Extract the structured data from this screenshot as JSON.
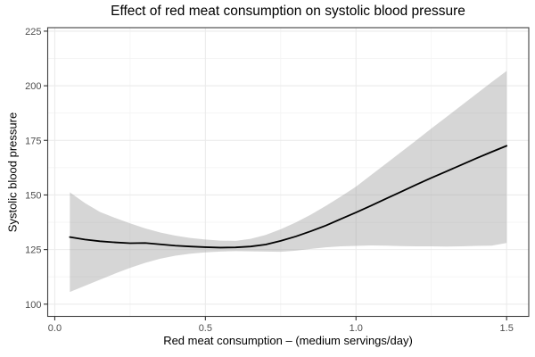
{
  "chart_data": {
    "type": "line",
    "title": "Effect of red meat consumption on systolic blood pressure",
    "xlabel": "Red meat consumption – (medium servings/day)",
    "ylabel": "Systolic blood pressure",
    "legend": "none",
    "grid": "on",
    "xlim": [
      -0.0235,
      1.5735
    ],
    "ylim": [
      94.4,
      226.6
    ],
    "x_ticks": {
      "major": [
        0.0,
        0.5,
        1.0,
        1.5
      ],
      "minor": [
        0.25,
        0.75,
        1.25
      ],
      "labels": [
        "0.0",
        "0.5",
        "1.0",
        "1.5"
      ]
    },
    "y_ticks": {
      "major": [
        100,
        125,
        150,
        175,
        200,
        225
      ],
      "minor": [
        112.5,
        137.5,
        162.5,
        187.5,
        212.5
      ],
      "labels": [
        "100",
        "125",
        "150",
        "175",
        "200",
        "225"
      ]
    },
    "x": [
      0.05,
      0.1,
      0.15,
      0.2,
      0.25,
      0.3,
      0.35,
      0.4,
      0.45,
      0.5,
      0.55,
      0.6,
      0.65,
      0.7,
      0.75,
      0.8,
      0.85,
      0.9,
      0.95,
      1.0,
      1.05,
      1.1,
      1.15,
      1.2,
      1.25,
      1.3,
      1.35,
      1.4,
      1.45,
      1.5
    ],
    "series": [
      {
        "name": "mean_systolic_bp",
        "role": "line",
        "values": [
          130.7,
          129.6,
          128.8,
          128.3,
          127.9,
          128.0,
          127.4,
          126.8,
          126.4,
          126.1,
          125.9,
          126.0,
          126.4,
          127.3,
          129.0,
          131.0,
          133.4,
          136.0,
          139.0,
          142.0,
          145.1,
          148.3,
          151.5,
          154.7,
          157.8,
          160.8,
          163.8,
          166.8,
          169.7,
          172.5
        ]
      },
      {
        "name": "ci_upper",
        "role": "ribbon_upper",
        "values": [
          151.2,
          146.3,
          142.2,
          139.5,
          137.0,
          134.7,
          132.8,
          131.4,
          130.3,
          129.6,
          129.1,
          129.0,
          129.9,
          131.7,
          134.3,
          137.4,
          141.0,
          145.0,
          149.3,
          153.8,
          159.1,
          164.4,
          169.7,
          175.0,
          180.4,
          185.7,
          191.0,
          196.3,
          201.6,
          206.8
        ]
      },
      {
        "name": "ci_lower",
        "role": "ribbon_lower",
        "values": [
          105.6,
          108.4,
          111.2,
          114.0,
          116.6,
          118.9,
          120.8,
          122.2,
          123.1,
          123.7,
          124.1,
          124.3,
          124.2,
          124.1,
          124.0,
          124.5,
          125.3,
          126.0,
          126.5,
          126.7,
          126.9,
          126.8,
          126.6,
          126.5,
          126.5,
          126.4,
          126.5,
          126.7,
          126.8,
          128.0
        ]
      }
    ],
    "colors": {
      "line": "#000000",
      "ribbon_fill": "rgba(153,153,153,0.40)",
      "grid_major": "#ebebeb",
      "grid_minor": "#f4f4f4",
      "panel_border": "#404040",
      "panel_background": "#ffffff",
      "tick_mark": "#333333",
      "tick_label": "#4d4d4d",
      "title_text": "#000000"
    }
  }
}
